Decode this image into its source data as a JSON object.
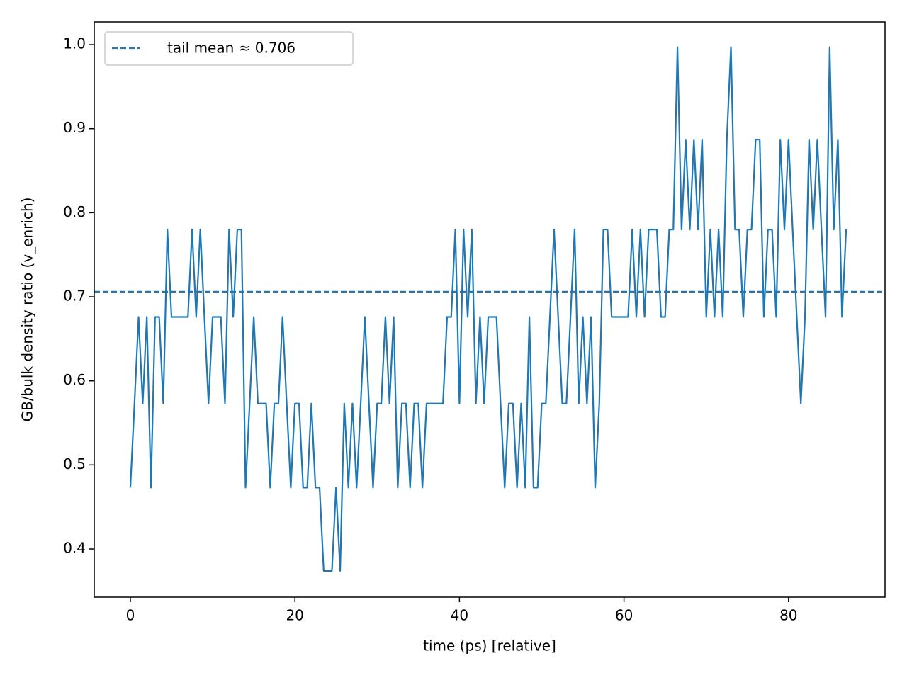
{
  "chart_data": {
    "type": "line",
    "x_label": "time (ps) [relative]",
    "y_label": "GB/bulk density ratio (v_enrich)",
    "x": [
      0,
      0.5,
      1,
      1.5,
      2,
      2.5,
      3,
      3.5,
      4,
      4.5,
      5,
      5.5,
      6,
      6.5,
      7,
      7.5,
      8,
      8.5,
      9,
      9.5,
      10,
      10.5,
      11,
      11.5,
      12,
      12.5,
      13,
      13.5,
      14,
      14.5,
      15,
      15.5,
      16,
      16.5,
      17,
      17.5,
      18,
      18.5,
      19,
      19.5,
      20,
      20.5,
      21,
      21.5,
      22,
      22.5,
      23,
      23.5,
      24,
      24.5,
      25,
      25.5,
      26,
      26.5,
      27,
      27.5,
      28,
      28.5,
      29,
      29.5,
      30,
      30.5,
      31,
      31.5,
      32,
      32.5,
      33,
      33.5,
      34,
      34.5,
      35,
      35.5,
      36,
      36.5,
      37,
      37.5,
      38,
      38.5,
      39,
      39.5,
      40,
      40.5,
      41,
      41.5,
      42,
      42.5,
      43,
      43.5,
      44,
      44.5,
      45,
      45.5,
      46,
      46.5,
      47,
      47.5,
      48,
      48.5,
      49,
      49.5,
      50,
      50.5,
      51,
      51.5,
      52,
      52.5,
      53,
      53.5,
      54,
      54.5,
      55,
      55.5,
      56,
      56.5,
      57,
      57.5,
      58,
      58.5,
      59,
      59.5,
      60,
      60.5,
      61,
      61.5,
      62,
      62.5,
      63,
      63.5,
      64,
      64.5,
      65,
      65.5,
      66,
      66.5,
      67,
      67.5,
      68,
      68.5,
      69,
      69.5,
      70,
      70.5,
      71,
      71.5,
      72,
      72.5,
      73,
      73.5,
      74,
      74.5,
      75,
      75.5,
      76,
      76.5,
      77,
      77.5,
      78,
      78.5,
      79,
      79.5,
      80,
      80.5,
      81,
      81.5,
      82,
      82.5,
      83,
      83.5,
      84,
      84.5,
      85,
      85.5,
      86,
      86.5,
      87
    ],
    "series": [
      {
        "color": "#1f77b4",
        "values": [
          0.473,
          0.573,
          0.676,
          0.573,
          0.676,
          0.473,
          0.676,
          0.676,
          0.573,
          0.78,
          0.676,
          0.676,
          0.676,
          0.676,
          0.676,
          0.78,
          0.676,
          0.78,
          0.676,
          0.573,
          0.676,
          0.676,
          0.676,
          0.573,
          0.78,
          0.676,
          0.78,
          0.78,
          0.473,
          0.573,
          0.676,
          0.573,
          0.573,
          0.573,
          0.473,
          0.573,
          0.573,
          0.676,
          0.573,
          0.473,
          0.573,
          0.573,
          0.473,
          0.473,
          0.573,
          0.473,
          0.473,
          0.374,
          0.374,
          0.374,
          0.473,
          0.374,
          0.573,
          0.473,
          0.573,
          0.473,
          0.573,
          0.676,
          0.573,
          0.473,
          0.573,
          0.573,
          0.676,
          0.573,
          0.676,
          0.473,
          0.573,
          0.573,
          0.473,
          0.573,
          0.573,
          0.473,
          0.573,
          0.573,
          0.573,
          0.573,
          0.573,
          0.676,
          0.676,
          0.78,
          0.573,
          0.78,
          0.676,
          0.78,
          0.573,
          0.676,
          0.573,
          0.676,
          0.676,
          0.676,
          0.573,
          0.473,
          0.573,
          0.573,
          0.473,
          0.573,
          0.473,
          0.676,
          0.473,
          0.473,
          0.573,
          0.573,
          0.676,
          0.78,
          0.676,
          0.573,
          0.573,
          0.676,
          0.78,
          0.573,
          0.676,
          0.573,
          0.676,
          0.473,
          0.573,
          0.78,
          0.78,
          0.676,
          0.676,
          0.676,
          0.676,
          0.676,
          0.78,
          0.676,
          0.78,
          0.676,
          0.78,
          0.78,
          0.78,
          0.676,
          0.676,
          0.78,
          0.78,
          0.997,
          0.78,
          0.887,
          0.78,
          0.887,
          0.78,
          0.887,
          0.676,
          0.78,
          0.676,
          0.78,
          0.676,
          0.887,
          0.997,
          0.78,
          0.78,
          0.676,
          0.78,
          0.78,
          0.887,
          0.887,
          0.676,
          0.78,
          0.78,
          0.676,
          0.887,
          0.78,
          0.887,
          0.78,
          0.676,
          0.573,
          0.676,
          0.887,
          0.78,
          0.887,
          0.78,
          0.676,
          0.997,
          0.78,
          0.887,
          0.676,
          0.78
        ]
      }
    ],
    "hline": {
      "value": 0.706,
      "label": "tail mean ≈ 0.706",
      "color": "#1f77b4"
    },
    "legend": "upper left",
    "xlim": [
      -4.39,
      91.73
    ],
    "ylim": [
      0.3427,
      1.027
    ],
    "xticks": [
      0,
      20,
      40,
      60,
      80
    ],
    "yticks": [
      0.4,
      0.5,
      0.6,
      0.7,
      0.8,
      0.9,
      {
        "value": 1,
        "label": "1.0"
      }
    ]
  }
}
